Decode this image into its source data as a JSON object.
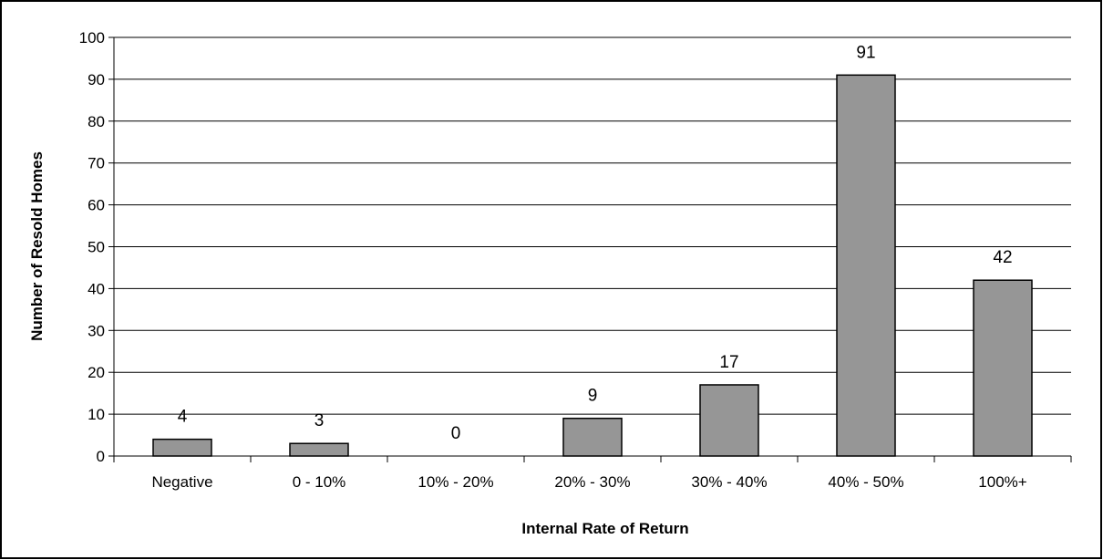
{
  "chart_data": {
    "type": "bar",
    "title": "",
    "xlabel": "Internal Rate of Return",
    "ylabel": "Number of Resold Homes",
    "categories": [
      "Negative",
      "0 - 10%",
      "10% - 20%",
      "20% - 30%",
      "30% - 40%",
      "40% - 50%",
      "100%+"
    ],
    "values": [
      4,
      3,
      0,
      9,
      17,
      91,
      42
    ],
    "data_labels": [
      "4",
      "3",
      "0",
      "9",
      "17",
      "91",
      "42"
    ],
    "ylim": [
      0,
      100
    ],
    "yticks": [
      0,
      10,
      20,
      30,
      40,
      50,
      60,
      70,
      80,
      90,
      100
    ],
    "ytick_labels": [
      "0",
      "10",
      "20",
      "30",
      "40",
      "50",
      "60",
      "70",
      "80",
      "90",
      "100"
    ],
    "grid": true,
    "legend": "none",
    "colors": {
      "bar_fill": "#969696",
      "bar_stroke": "#000000",
      "grid": "#000000",
      "frame": "#000000",
      "background": "#ffffff"
    }
  }
}
